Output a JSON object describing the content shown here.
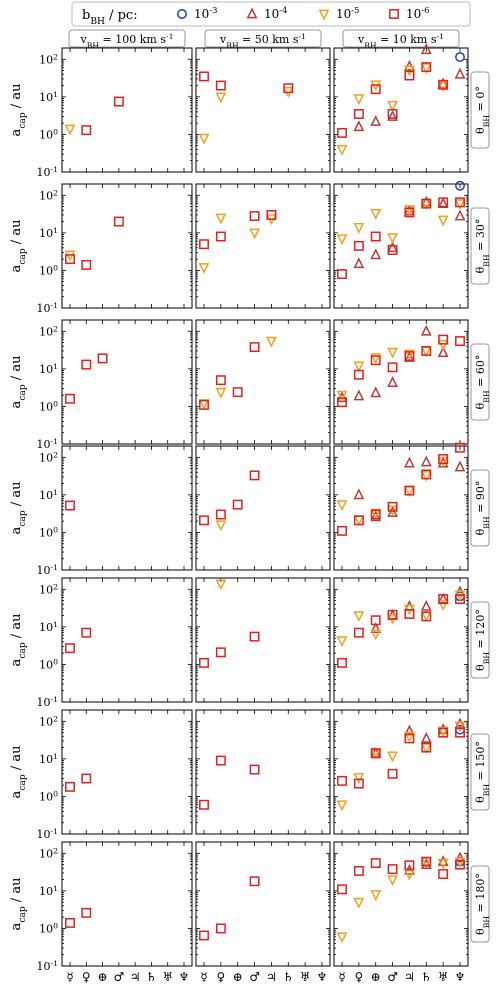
{
  "legend": {
    "title": "b_BH / pc:",
    "entries": [
      {
        "label": "10^-3",
        "marker": "circle",
        "color": "#1f3fbf"
      },
      {
        "label": "10^-4",
        "marker": "triangle-up",
        "color": "#b83a3a"
      },
      {
        "label": "10^-5",
        "marker": "triangle-down",
        "color": "#f0a020"
      },
      {
        "label": "10^-6",
        "marker": "square",
        "color": "#e02020"
      }
    ]
  },
  "columns": [
    "v_BH = 100 km s^-1",
    "v_BH = 50 km s^-1",
    "v_BH = 10 km s^-1"
  ],
  "rows": [
    "θ_BH = 0°",
    "θ_BH = 30°",
    "θ_BH = 60°",
    "θ_BH = 90°",
    "θ_BH = 120°",
    "θ_BH = 150°",
    "θ_BH = 180°"
  ],
  "colors": {
    "1e-3": "#1f3fbf",
    "1e-4": "#b83a3a",
    "1e-5": "#f0a020",
    "1e-6": "#e02020"
  },
  "chart_data": {
    "type": "scatter",
    "ylabel": "a_cap / au",
    "yscale": "log",
    "ylim": [
      0.1,
      200
    ],
    "yticks": [
      "10^-1",
      "10^0",
      "10^1",
      "10^2"
    ],
    "x_categories": [
      "☿",
      "♀",
      "⊕",
      "♂",
      "♃",
      "♄",
      "♅",
      "♆"
    ],
    "panels": [
      [
        {
          "1e-5": [
            [
              0,
              1.4
            ]
          ],
          "1e-6": [
            [
              1,
              1.3
            ],
            [
              3,
              7.5
            ]
          ]
        },
        {
          "1e-5": [
            [
              0,
              0.8
            ],
            [
              1,
              10
            ],
            [
              5,
              14
            ]
          ],
          "1e-6": [
            [
              0,
              35
            ],
            [
              1,
              20
            ],
            [
              5,
              17
            ]
          ]
        },
        {
          "1e-3": [
            [
              7,
              115
            ]
          ],
          "1e-4": [
            [
              1,
              1.6
            ],
            [
              2,
              2.2
            ],
            [
              3,
              3.0
            ],
            [
              4,
              65
            ],
            [
              6,
              22
            ],
            [
              7,
              40
            ],
            [
              5,
              180
            ]
          ],
          "1e-5": [
            [
              0,
              0.4
            ],
            [
              1,
              9
            ],
            [
              2,
              21
            ],
            [
              3,
              6
            ],
            [
              4,
              52
            ],
            [
              5,
              60
            ],
            [
              6,
              20
            ]
          ],
          "1e-6": [
            [
              0,
              1.1
            ],
            [
              1,
              3.5
            ],
            [
              2,
              16
            ],
            [
              3,
              3.5
            ],
            [
              4,
              37
            ],
            [
              5,
              62
            ],
            [
              6,
              21
            ]
          ]
        }
      ],
      [
        {
          "1e-5": [
            [
              0,
              2.6
            ]
          ],
          "1e-6": [
            [
              0,
              2.0
            ],
            [
              1,
              1.4
            ],
            [
              3,
              20
            ]
          ]
        },
        {
          "1e-5": [
            [
              0,
              1.2
            ],
            [
              1,
              25
            ],
            [
              3,
              10
            ],
            [
              4,
              24
            ]
          ],
          "1e-6": [
            [
              0,
              5
            ],
            [
              1,
              8
            ],
            [
              3,
              28
            ],
            [
              4,
              30
            ]
          ]
        },
        {
          "1e-3": [
            [
              7,
              180
            ]
          ],
          "1e-4": [
            [
              1,
              1.5
            ],
            [
              2,
              2.6
            ],
            [
              3,
              4.0
            ],
            [
              4,
              38
            ],
            [
              5,
              65
            ],
            [
              6,
              60
            ],
            [
              7,
              28
            ]
          ],
          "1e-5": [
            [
              0,
              7
            ],
            [
              1,
              14
            ],
            [
              2,
              33
            ],
            [
              3,
              7.5
            ],
            [
              4,
              42
            ],
            [
              5,
              60
            ],
            [
              6,
              22
            ],
            [
              7,
              60
            ]
          ],
          "1e-6": [
            [
              0,
              0.8
            ],
            [
              1,
              4.5
            ],
            [
              2,
              8
            ],
            [
              3,
              3.5
            ],
            [
              4,
              35
            ],
            [
              5,
              60
            ],
            [
              6,
              65
            ],
            [
              7,
              65
            ]
          ]
        }
      ],
      [
        {
          "1e-6": [
            [
              0,
              1.6
            ],
            [
              1,
              13
            ],
            [
              2,
              19
            ]
          ]
        },
        {
          "1e-5": [
            [
              0,
              1.2
            ],
            [
              1,
              2.4
            ],
            [
              4,
              55
            ]
          ],
          "1e-6": [
            [
              0,
              1.1
            ],
            [
              1,
              5
            ],
            [
              2,
              2.4
            ],
            [
              3,
              38
            ]
          ]
        },
        {
          "1e-4": [
            [
              0,
              1.7
            ],
            [
              1,
              1.9
            ],
            [
              2,
              2.3
            ],
            [
              3,
              4.3
            ],
            [
              4,
              20
            ],
            [
              5,
              100
            ],
            [
              6,
              27
            ]
          ],
          "1e-5": [
            [
              0,
              2.0
            ],
            [
              1,
              12
            ],
            [
              2,
              20
            ],
            [
              3,
              28
            ],
            [
              4,
              25
            ],
            [
              5,
              30
            ],
            [
              6,
              45
            ]
          ],
          "1e-6": [
            [
              0,
              1.3
            ],
            [
              1,
              7
            ],
            [
              2,
              17
            ],
            [
              3,
              11
            ],
            [
              4,
              22
            ],
            [
              5,
              30
            ],
            [
              6,
              60
            ],
            [
              7,
              55
            ]
          ]
        }
      ],
      [
        {
          "1e-6": [
            [
              0,
              5.2
            ]
          ]
        },
        {
          "1e-5": [
            [
              1,
              1.6
            ]
          ],
          "1e-6": [
            [
              0,
              2.1
            ],
            [
              1,
              3.0
            ],
            [
              2,
              5.5
            ],
            [
              3,
              33
            ]
          ]
        },
        {
          "1e-4": [
            [
              1,
              10
            ],
            [
              2,
              2.6
            ],
            [
              3,
              3.4
            ],
            [
              4,
              70
            ],
            [
              5,
              75
            ],
            [
              6,
              70
            ],
            [
              7,
              55
            ]
          ],
          "1e-5": [
            [
              0,
              5.5
            ],
            [
              1,
              2.2
            ],
            [
              2,
              3.3
            ],
            [
              3,
              4.0
            ],
            [
              4,
              13
            ],
            [
              5,
              33
            ],
            [
              6,
              80
            ]
          ],
          "1e-6": [
            [
              0,
              1.1
            ],
            [
              1,
              2.1
            ],
            [
              2,
              3.0
            ],
            [
              3,
              4.8
            ],
            [
              4,
              13
            ],
            [
              5,
              35
            ],
            [
              6,
              90
            ],
            [
              7,
              180
            ]
          ]
        }
      ],
      [
        {
          "1e-6": [
            [
              0,
              2.7
            ],
            [
              1,
              7
            ]
          ]
        },
        {
          "1e-5": [
            [
              1,
              140
            ]
          ],
          "1e-6": [
            [
              0,
              1.1
            ],
            [
              1,
              2.1
            ],
            [
              3,
              5.5
            ]
          ]
        },
        {
          "1e-3": [
            [
              7,
              65
            ]
          ],
          "1e-4": [
            [
              2,
              9
            ],
            [
              3,
              20
            ],
            [
              4,
              35
            ],
            [
              5,
              35
            ],
            [
              6,
              55
            ],
            [
              7,
              85
            ]
          ],
          "1e-5": [
            [
              0,
              4.3
            ],
            [
              1,
              20
            ],
            [
              2,
              6.5
            ],
            [
              3,
              17
            ],
            [
              4,
              30
            ],
            [
              5,
              20
            ],
            [
              6,
              40
            ],
            [
              7,
              70
            ]
          ],
          "1e-6": [
            [
              0,
              1.1
            ],
            [
              1,
              7
            ],
            [
              2,
              15
            ],
            [
              3,
              21
            ],
            [
              4,
              22
            ],
            [
              5,
              19
            ],
            [
              6,
              55
            ],
            [
              7,
              55
            ]
          ]
        }
      ],
      [
        {
          "1e-6": [
            [
              0,
              1.8
            ],
            [
              1,
              3.0
            ]
          ]
        },
        {
          "1e-6": [
            [
              0,
              0.6
            ],
            [
              1,
              9
            ],
            [
              3,
              5.2
            ]
          ]
        },
        {
          "1e-3": [
            [
              7,
              60
            ]
          ],
          "1e-4": [
            [
              2,
              14
            ],
            [
              4,
              55
            ],
            [
              5,
              35
            ],
            [
              6,
              60
            ],
            [
              7,
              85
            ]
          ],
          "1e-5": [
            [
              0,
              0.6
            ],
            [
              1,
              3.2
            ],
            [
              2,
              15
            ],
            [
              3,
              12
            ],
            [
              4,
              40
            ],
            [
              5,
              20
            ],
            [
              6,
              55
            ],
            [
              7,
              75
            ]
          ],
          "1e-6": [
            [
              0,
              2.6
            ],
            [
              1,
              2.2
            ],
            [
              2,
              14
            ],
            [
              3,
              4.0
            ],
            [
              4,
              35
            ],
            [
              5,
              20
            ],
            [
              6,
              50
            ],
            [
              7,
              50
            ]
          ]
        }
      ],
      [
        {
          "1e-6": [
            [
              0,
              1.4
            ],
            [
              1,
              2.6
            ]
          ]
        },
        {
          "1e-6": [
            [
              0,
              0.65
            ],
            [
              1,
              1.0
            ],
            [
              3,
              18
            ]
          ]
        },
        {
          "1e-3": [
            [
              7,
              60
            ]
          ],
          "1e-4": [
            [
              4,
              35
            ],
            [
              5,
              50
            ],
            [
              6,
              60
            ],
            [
              7,
              75
            ]
          ],
          "1e-5": [
            [
              0,
              0.6
            ],
            [
              1,
              5
            ],
            [
              2,
              8
            ],
            [
              3,
              20
            ],
            [
              4,
              28
            ],
            [
              5,
              60
            ],
            [
              6,
              55
            ],
            [
              7,
              60
            ]
          ],
          "1e-6": [
            [
              0,
              11
            ],
            [
              1,
              34
            ],
            [
              2,
              55
            ],
            [
              3,
              38
            ],
            [
              4,
              48
            ],
            [
              5,
              60
            ],
            [
              6,
              28
            ],
            [
              7,
              50
            ]
          ]
        }
      ]
    ]
  }
}
